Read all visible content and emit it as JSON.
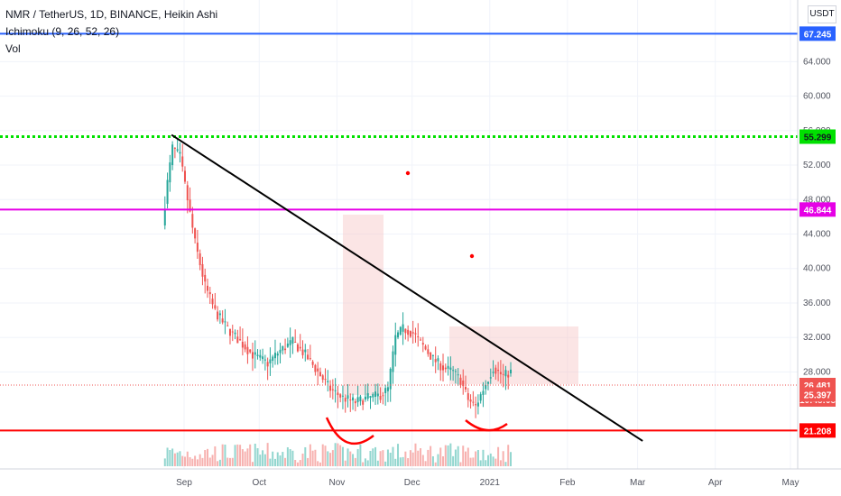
{
  "chart_data": {
    "type": "candlestick",
    "title": "NMR / TetherUS, 1D, BINANCE, Heikin Ashi",
    "indicators": [
      "Ichimoku (9, 26, 52, 26)",
      "Vol"
    ],
    "currency": "USDT",
    "x_ticks": [
      "Sep",
      "Oct",
      "Nov",
      "Dec",
      "2021",
      "Feb",
      "Mar",
      "Apr",
      "May"
    ],
    "y_ticks": [
      "64.000",
      "60.000",
      "56.000",
      "52.000",
      "48.000",
      "44.000",
      "40.000",
      "36.000",
      "32.000",
      "28.000"
    ],
    "y_range": [
      19.5,
      71
    ],
    "top_tick": "7",
    "horizontal_levels": [
      {
        "price": 67.245,
        "label": "67.245",
        "color": "#2962ff",
        "style": "solid"
      },
      {
        "price": 55.299,
        "label": "55.299",
        "color": "#00e000",
        "style": "dotted"
      },
      {
        "price": 46.844,
        "label": "46.844",
        "color": "#e600e6",
        "style": "solid"
      },
      {
        "price": 21.208,
        "label": "21.208",
        "color": "#ff0000",
        "style": "solid"
      }
    ],
    "last_price": {
      "price": 26.481,
      "label": "26.481",
      "countdown": "10:48:08",
      "color": "#ef5350"
    },
    "cursor_price": {
      "price": 25.397,
      "label": "25.397"
    },
    "trendline": {
      "start": [
        "2020-08-27",
        55.5
      ],
      "end": [
        "2021-03-03",
        20.0
      ]
    },
    "price_path": [
      [
        "2020-08-24",
        45
      ],
      [
        "2020-08-26",
        50
      ],
      [
        "2020-08-28",
        54
      ],
      [
        "2020-08-31",
        53
      ],
      [
        "2020-09-03",
        48
      ],
      [
        "2020-09-06",
        43
      ],
      [
        "2020-09-10",
        38
      ],
      [
        "2020-09-14",
        35
      ],
      [
        "2020-09-19",
        33
      ],
      [
        "2020-09-24",
        31.5
      ],
      [
        "2020-09-29",
        30
      ],
      [
        "2020-10-05",
        29
      ],
      [
        "2020-10-10",
        30.5
      ],
      [
        "2020-10-15",
        31.5
      ],
      [
        "2020-10-20",
        30
      ],
      [
        "2020-10-25",
        28
      ],
      [
        "2020-10-30",
        26
      ],
      [
        "2020-11-04",
        25
      ],
      [
        "2020-11-09",
        24.5
      ],
      [
        "2020-11-14",
        25
      ],
      [
        "2020-11-19",
        25.3
      ],
      [
        "2020-11-22",
        26
      ],
      [
        "2020-11-25",
        32
      ],
      [
        "2020-11-28",
        33
      ],
      [
        "2020-12-02",
        32.5
      ],
      [
        "2020-12-06",
        31
      ],
      [
        "2020-12-10",
        29.5
      ],
      [
        "2020-12-14",
        28.5
      ],
      [
        "2020-12-18",
        28
      ],
      [
        "2020-12-21",
        27
      ],
      [
        "2020-12-24",
        24.8
      ],
      [
        "2020-12-27",
        24
      ],
      [
        "2020-12-30",
        26
      ],
      [
        "2021-01-03",
        28.5
      ],
      [
        "2021-01-07",
        27.5
      ],
      [
        "2021-01-10",
        28
      ]
    ]
  }
}
